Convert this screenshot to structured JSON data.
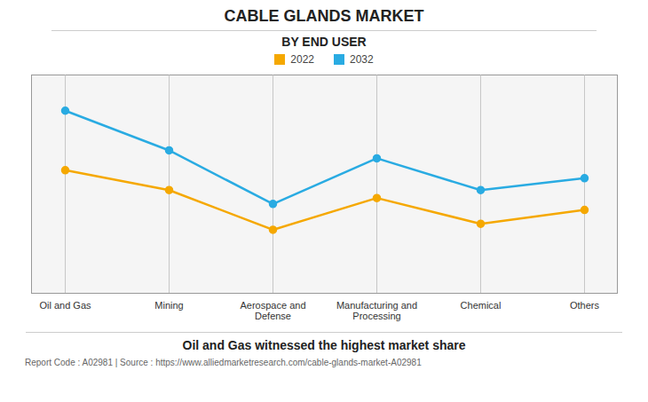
{
  "chart_data": {
    "type": "line",
    "title": "CABLE GLANDS MARKET",
    "subtitle": "BY END USER",
    "categories": [
      "Oil and Gas",
      "Mining",
      "Aerospace and\nDefense",
      "Manufacturing and\nProcessing",
      "Chemical",
      "Others"
    ],
    "series": [
      {
        "name": "2022",
        "color": "#F5A800",
        "values": [
          62,
          52,
          32,
          48,
          35,
          42
        ]
      },
      {
        "name": "2032",
        "color": "#29ABE2",
        "values": [
          92,
          72,
          45,
          68,
          52,
          58
        ]
      }
    ],
    "ylim": [
      0,
      110
    ],
    "yticks": [],
    "grid": true,
    "legend": "top",
    "tick_labels": "x",
    "marker": "circle",
    "annotations": [
      "Oil and Gas witnessed the highest market share",
      "Report Code : A02981  |  Source : https://www.alliedmarketresearch.com/cable-glands-market-A02981"
    ]
  }
}
